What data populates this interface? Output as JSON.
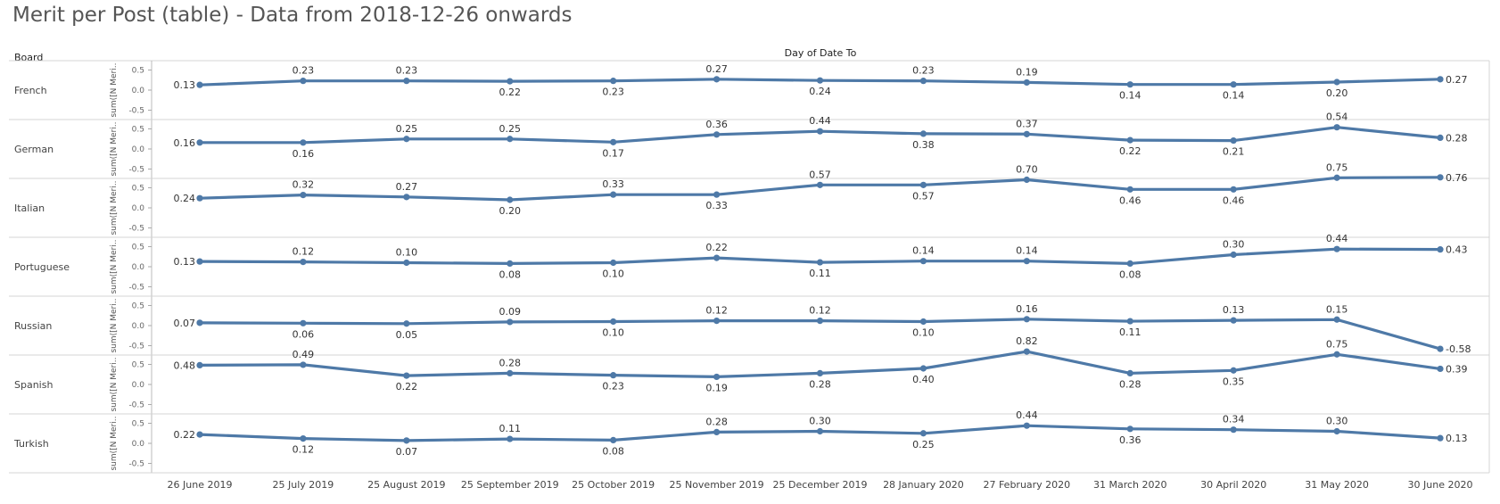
{
  "page": {
    "title": "Merit per Post (table) - Data from 2018-12-26 onwards"
  },
  "chart_data": {
    "type": "line",
    "row_header": "Board",
    "column_header": "Day of Date To",
    "yaxis_label": "sum([N Meri..",
    "ylim": [
      -0.6,
      0.6
    ],
    "yticks": [
      0.5,
      0.0,
      -0.5
    ],
    "ytick_labels": [
      "0.5",
      "0.0",
      "-0.5"
    ],
    "grid": false,
    "line_color": "#4e79a7",
    "categories": [
      "26 June 2019",
      "25 July 2019",
      "25 August 2019",
      "25 September 2019",
      "25 October 2019",
      "25 November 2019",
      "25 December 2019",
      "28 January 2020",
      "27 February 2020",
      "31 March 2020",
      "30 April 2020",
      "31 May 2020",
      "30 June 2020"
    ],
    "series": [
      {
        "name": "French",
        "values": [
          0.13,
          0.23,
          0.23,
          0.22,
          0.23,
          0.27,
          0.24,
          0.23,
          0.19,
          0.14,
          0.14,
          0.2,
          0.27
        ],
        "labels": [
          "0.13",
          "0.23",
          "0.23",
          "0.22",
          "0.23",
          "0.27",
          "0.24",
          "0.23",
          "0.19",
          "0.14",
          "0.14",
          "0.20",
          "0.27"
        ]
      },
      {
        "name": "German",
        "values": [
          0.16,
          0.16,
          0.25,
          0.25,
          0.17,
          0.36,
          0.44,
          0.38,
          0.37,
          0.22,
          0.21,
          0.54,
          0.28
        ],
        "labels": [
          "0.16",
          "0.16",
          "0.25",
          "0.25",
          "0.17",
          "0.36",
          "0.44",
          "0.38",
          "0.37",
          "0.22",
          "0.21",
          "0.54",
          "0.28"
        ]
      },
      {
        "name": "Italian",
        "values": [
          0.24,
          0.32,
          0.27,
          0.2,
          0.33,
          0.33,
          0.57,
          0.57,
          0.7,
          0.46,
          0.46,
          0.75,
          0.76
        ],
        "labels": [
          "0.24",
          "0.32",
          "0.27",
          "0.20",
          "0.33",
          "0.33",
          "0.57",
          "0.57",
          "0.70",
          "0.46",
          "0.46",
          "0.75",
          "0.76"
        ]
      },
      {
        "name": "Portuguese",
        "values": [
          0.13,
          0.12,
          0.1,
          0.08,
          0.1,
          0.22,
          0.11,
          0.14,
          0.14,
          0.08,
          0.3,
          0.44,
          0.43
        ],
        "labels": [
          "0.13",
          "0.12",
          "0.10",
          "0.08",
          "0.10",
          "0.22",
          "0.11",
          "0.14",
          "0.14",
          "0.08",
          "0.30",
          "0.44",
          "0.43"
        ]
      },
      {
        "name": "Russian",
        "values": [
          0.07,
          0.06,
          0.05,
          0.09,
          0.1,
          0.12,
          0.12,
          0.1,
          0.16,
          0.11,
          0.13,
          0.15,
          -0.58
        ],
        "labels": [
          "0.07",
          "0.06",
          "0.05",
          "0.09",
          "0.10",
          "0.12",
          "0.12",
          "0.10",
          "0.16",
          "0.11",
          "0.13",
          "0.15",
          "-0.58"
        ]
      },
      {
        "name": "Spanish",
        "values": [
          0.48,
          0.49,
          0.22,
          0.28,
          0.23,
          0.19,
          0.28,
          0.4,
          0.82,
          0.28,
          0.35,
          0.75,
          0.39
        ],
        "labels": [
          "0.48",
          "0.49",
          "0.22",
          "0.28",
          "0.23",
          "0.19",
          "0.28",
          "0.40",
          "0.82",
          "0.28",
          "0.35",
          "0.75",
          "0.39"
        ]
      },
      {
        "name": "Turkish",
        "values": [
          0.22,
          0.12,
          0.07,
          0.11,
          0.08,
          0.28,
          0.3,
          0.25,
          0.44,
          0.36,
          0.34,
          0.3,
          0.13
        ],
        "labels": [
          "0.22",
          "0.12",
          "0.07",
          "0.11",
          "0.08",
          "0.28",
          "0.30",
          "0.25",
          "0.44",
          "0.36",
          "0.34",
          "0.30",
          "0.13"
        ]
      }
    ]
  }
}
